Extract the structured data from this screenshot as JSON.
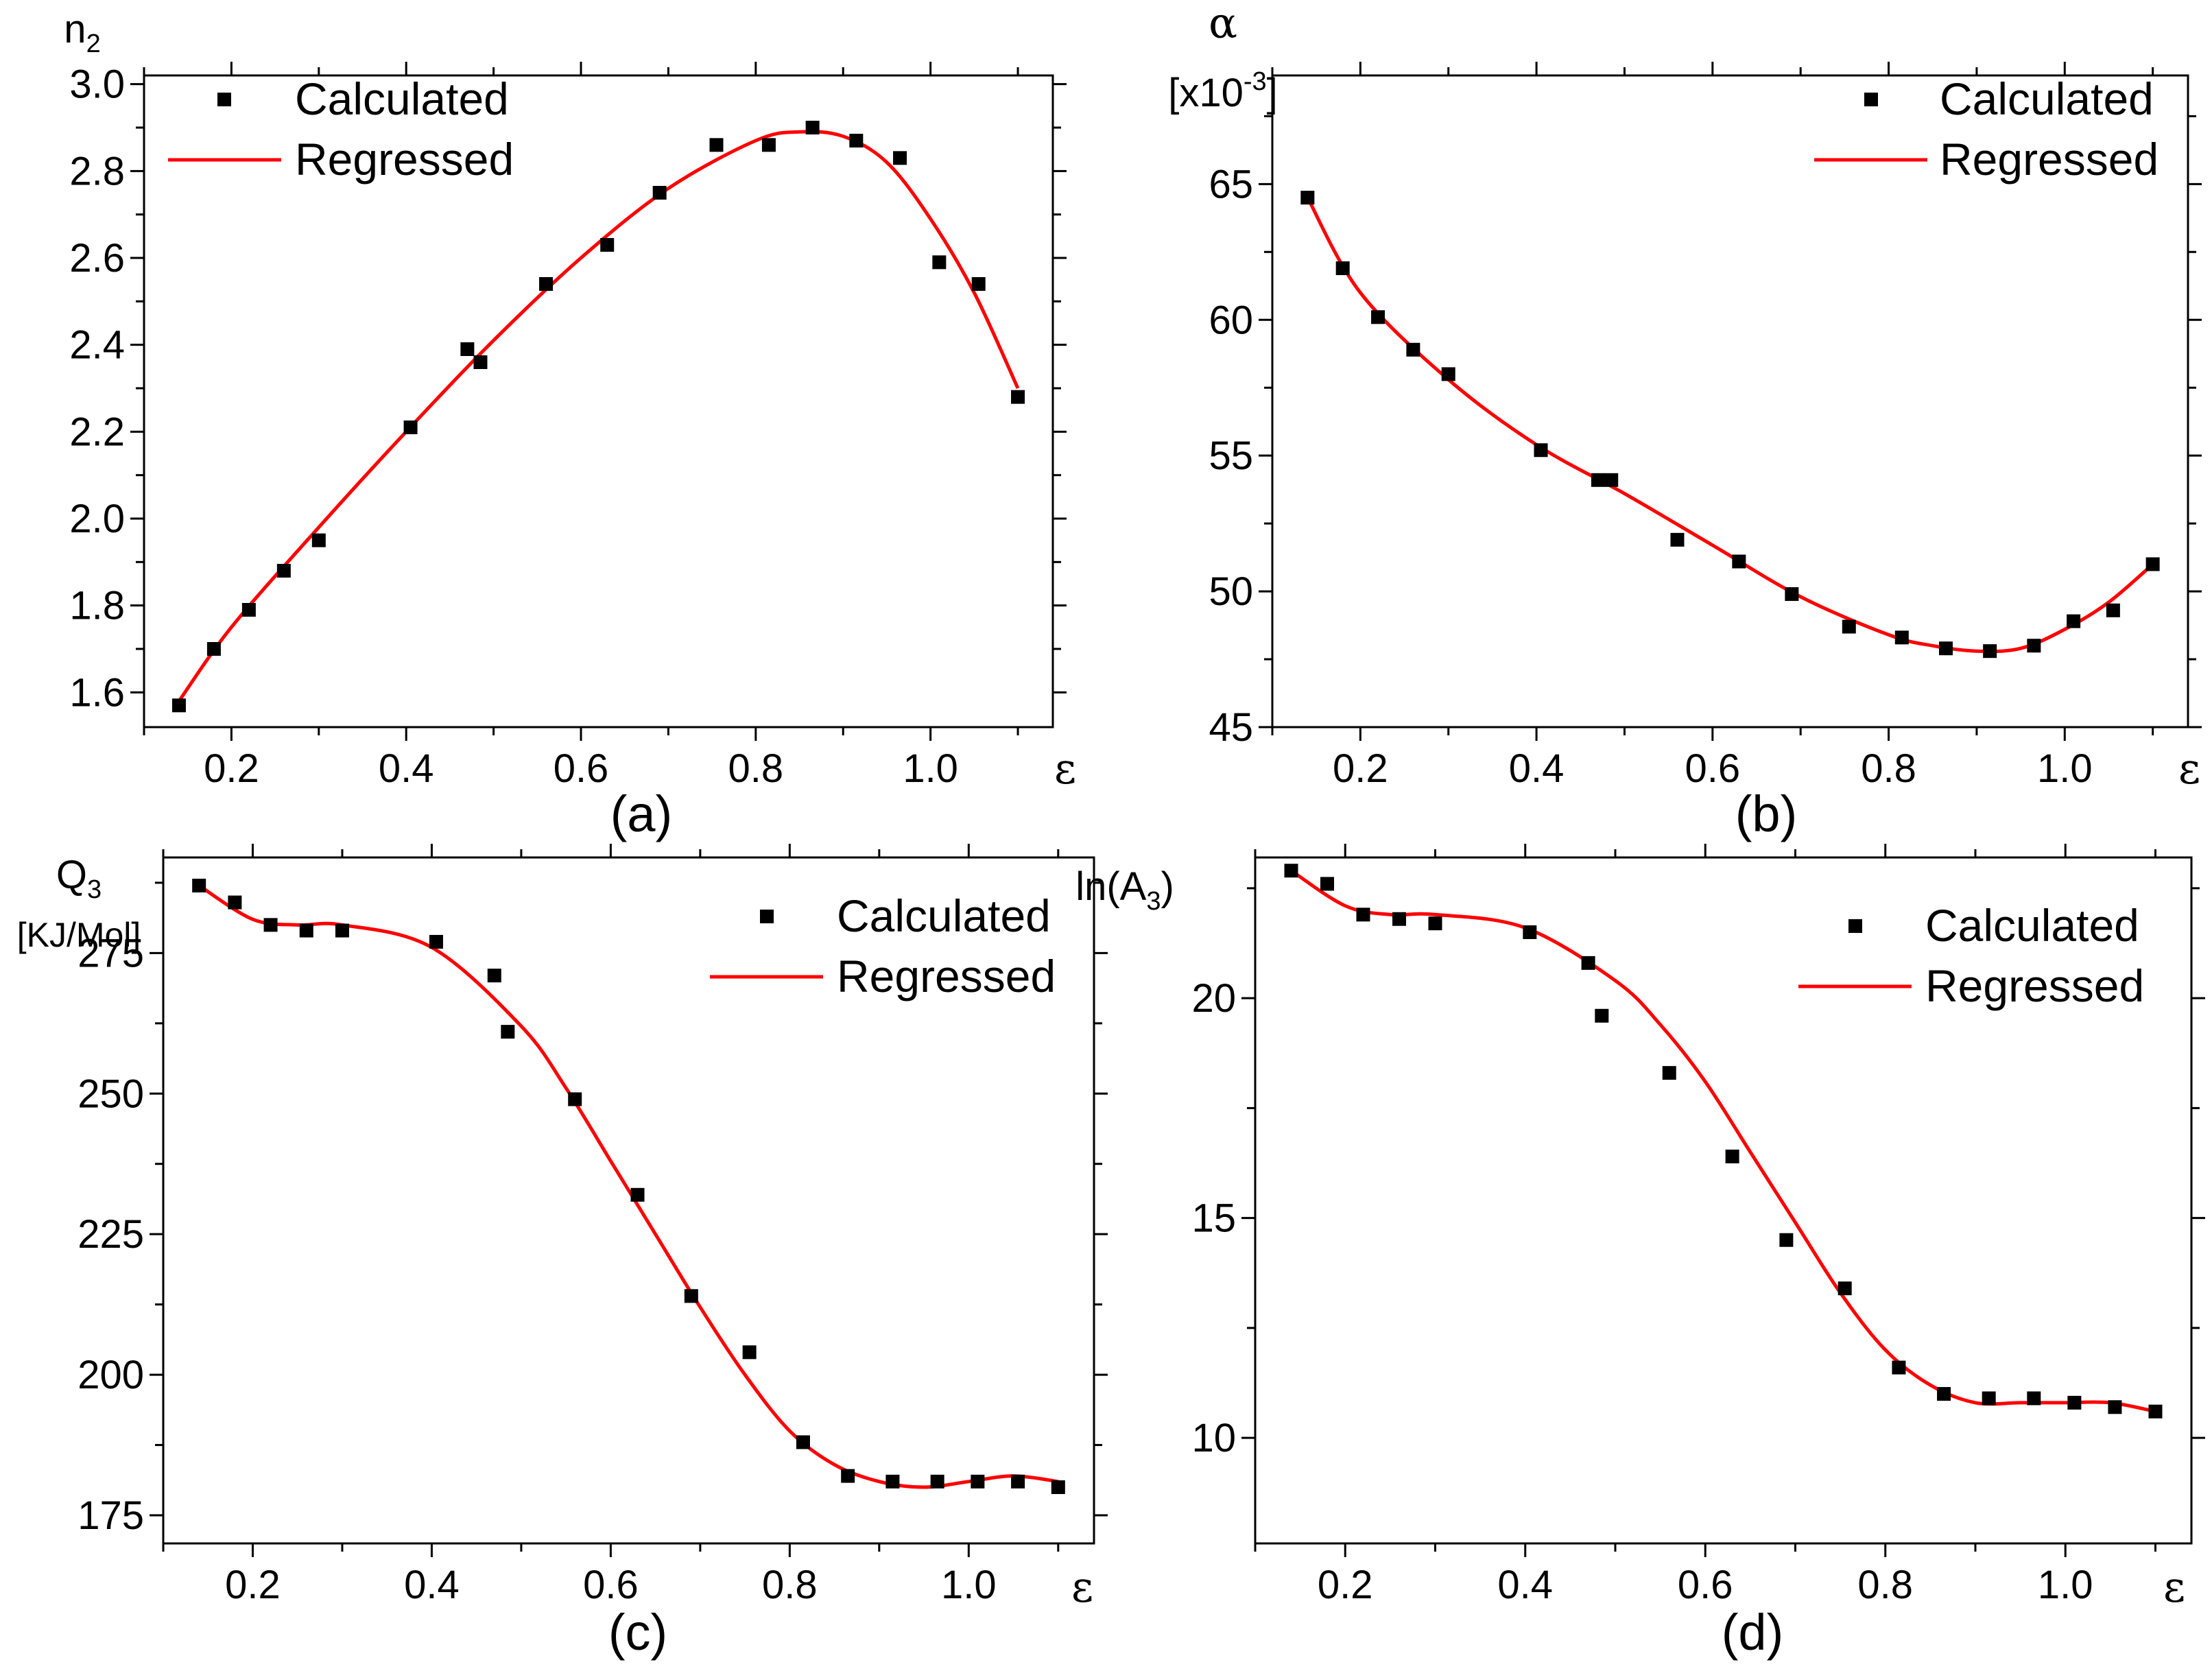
{
  "legend": {
    "calculated": "Calculated",
    "regressed": "Regressed"
  },
  "colors": {
    "points": "#000000",
    "regression": "#ff0000",
    "axes": "#000000"
  },
  "chart_data": [
    {
      "id": "a",
      "type": "scatter",
      "panel_label": "(a)",
      "title": "",
      "xlabel": "ε",
      "ylabel": {
        "text": "n",
        "sub": "2"
      },
      "xlim": [
        0.1,
        1.14
      ],
      "ylim": [
        1.52,
        3.02
      ],
      "xticks": [
        0.2,
        0.4,
        0.6,
        0.8,
        1.0
      ],
      "xtick_labels": [
        "0.2",
        "0.4",
        "0.6",
        "0.8",
        "1.0"
      ],
      "yticks": [
        1.6,
        1.8,
        2.0,
        2.2,
        2.4,
        2.6,
        2.8,
        3.0
      ],
      "ytick_labels": [
        "1.6",
        "1.8",
        "2.0",
        "2.2",
        "2.4",
        "2.6",
        "2.8",
        "3.0"
      ],
      "legend_position": "top-left",
      "series": [
        {
          "name": "Calculated",
          "x": [
            0.14,
            0.18,
            0.22,
            0.26,
            0.3,
            0.405,
            0.47,
            0.485,
            0.56,
            0.63,
            0.69,
            0.755,
            0.815,
            0.865,
            0.915,
            0.965,
            1.01,
            1.055,
            1.1
          ],
          "y": [
            1.57,
            1.7,
            1.79,
            1.88,
            1.95,
            2.21,
            2.39,
            2.36,
            2.54,
            2.63,
            2.75,
            2.86,
            2.86,
            2.9,
            2.87,
            2.83,
            2.59,
            2.54,
            2.28
          ]
        },
        {
          "name": "Regressed",
          "line": true,
          "x": [
            0.14,
            0.2,
            0.3,
            0.4,
            0.5,
            0.6,
            0.7,
            0.8,
            0.85,
            0.9,
            0.95,
            1.0,
            1.05,
            1.1
          ],
          "y": [
            1.58,
            1.75,
            1.98,
            2.2,
            2.41,
            2.6,
            2.76,
            2.87,
            2.89,
            2.88,
            2.82,
            2.69,
            2.52,
            2.3
          ]
        }
      ]
    },
    {
      "id": "b",
      "type": "scatter",
      "panel_label": "(b)",
      "title": "",
      "xlabel": "ε",
      "ylabel": {
        "text": "α",
        "unit_prefix": "[x10",
        "unit_sup": "-3",
        "unit_suffix": "]"
      },
      "xlim": [
        0.1,
        1.14
      ],
      "ylim": [
        45,
        69
      ],
      "xticks": [
        0.2,
        0.4,
        0.6,
        0.8,
        1.0
      ],
      "xtick_labels": [
        "0.2",
        "0.4",
        "0.6",
        "0.8",
        "1.0"
      ],
      "yticks": [
        45,
        50,
        55,
        60,
        65
      ],
      "ytick_labels": [
        "45",
        "50",
        "55",
        "60",
        "65"
      ],
      "legend_position": "top-right",
      "series": [
        {
          "name": "Calculated",
          "x": [
            0.14,
            0.18,
            0.22,
            0.26,
            0.3,
            0.405,
            0.47,
            0.485,
            0.56,
            0.63,
            0.69,
            0.755,
            0.815,
            0.865,
            0.915,
            0.965,
            1.01,
            1.055,
            1.1
          ],
          "y": [
            64.5,
            61.9,
            60.1,
            58.9,
            58.0,
            55.2,
            54.1,
            54.1,
            51.9,
            51.1,
            49.9,
            48.7,
            48.3,
            47.9,
            47.8,
            48.0,
            48.9,
            49.3,
            51.0
          ]
        },
        {
          "name": "Regressed",
          "line": true,
          "x": [
            0.14,
            0.2,
            0.3,
            0.4,
            0.5,
            0.6,
            0.7,
            0.8,
            0.85,
            0.9,
            0.95,
            1.0,
            1.05,
            1.1
          ],
          "y": [
            64.5,
            61.0,
            57.8,
            55.4,
            53.6,
            51.7,
            49.8,
            48.4,
            48.0,
            47.8,
            47.9,
            48.6,
            49.6,
            51.0
          ]
        }
      ]
    },
    {
      "id": "c",
      "type": "scatter",
      "panel_label": "(c)",
      "title": "",
      "xlabel": "ε",
      "ylabel": {
        "text": "Q",
        "sub": "3",
        "unit": "[KJ/Mol]"
      },
      "xlim": [
        0.1,
        1.14
      ],
      "ylim": [
        170,
        292
      ],
      "xticks": [
        0.2,
        0.4,
        0.6,
        0.8,
        1.0
      ],
      "xtick_labels": [
        "0.2",
        "0.4",
        "0.6",
        "0.8",
        "1.0"
      ],
      "yticks": [
        175,
        200,
        225,
        250,
        275
      ],
      "ytick_labels": [
        "175",
        "200",
        "225",
        "250",
        "275"
      ],
      "legend_position": "top-right",
      "series": [
        {
          "name": "Calculated",
          "x": [
            0.14,
            0.18,
            0.22,
            0.26,
            0.3,
            0.405,
            0.47,
            0.485,
            0.56,
            0.63,
            0.69,
            0.755,
            0.815,
            0.865,
            0.915,
            0.965,
            1.01,
            1.055,
            1.1
          ],
          "y": [
            287,
            284,
            280,
            279,
            279,
            277,
            271,
            261,
            249,
            232,
            214,
            204,
            188,
            182,
            181,
            181,
            181,
            181,
            180
          ]
        },
        {
          "name": "Regressed",
          "line": true,
          "x": [
            0.14,
            0.2,
            0.25,
            0.3,
            0.4,
            0.5,
            0.55,
            0.6,
            0.65,
            0.7,
            0.75,
            0.8,
            0.85,
            0.9,
            0.95,
            1.0,
            1.05,
            1.1
          ],
          "y": [
            287,
            281,
            280,
            280,
            276,
            262,
            251,
            238,
            225,
            212,
            200,
            190,
            184,
            181,
            180,
            181,
            182,
            181
          ]
        }
      ]
    },
    {
      "id": "d",
      "type": "scatter",
      "panel_label": "(d)",
      "title": "",
      "xlabel": "ε",
      "ylabel": {
        "text": "ln(A",
        "sub": "3",
        "suffix": ")"
      },
      "xlim": [
        0.1,
        1.14
      ],
      "ylim": [
        7.6,
        23.2
      ],
      "xticks": [
        0.2,
        0.4,
        0.6,
        0.8,
        1.0
      ],
      "xtick_labels": [
        "0.2",
        "0.4",
        "0.6",
        "0.8",
        "1.0"
      ],
      "yticks": [
        10,
        15,
        20
      ],
      "ytick_labels": [
        "10",
        "15",
        "20"
      ],
      "legend_position": "top-right",
      "series": [
        {
          "name": "Calculated",
          "x": [
            0.14,
            0.18,
            0.22,
            0.26,
            0.3,
            0.405,
            0.47,
            0.485,
            0.56,
            0.63,
            0.69,
            0.755,
            0.815,
            0.865,
            0.915,
            0.965,
            1.01,
            1.055,
            1.1
          ],
          "y": [
            22.9,
            22.6,
            21.9,
            21.8,
            21.7,
            21.5,
            20.8,
            19.6,
            18.3,
            16.4,
            14.5,
            13.4,
            11.6,
            11.0,
            10.9,
            10.9,
            10.8,
            10.7,
            10.6
          ]
        },
        {
          "name": "Regressed",
          "line": true,
          "x": [
            0.14,
            0.2,
            0.25,
            0.3,
            0.4,
            0.5,
            0.55,
            0.6,
            0.65,
            0.7,
            0.75,
            0.8,
            0.85,
            0.9,
            0.95,
            1.0,
            1.05,
            1.1
          ],
          "y": [
            22.9,
            22.1,
            21.9,
            21.9,
            21.6,
            20.4,
            19.4,
            18.1,
            16.5,
            14.9,
            13.3,
            12.0,
            11.2,
            10.8,
            10.8,
            10.8,
            10.8,
            10.6
          ]
        }
      ]
    }
  ]
}
